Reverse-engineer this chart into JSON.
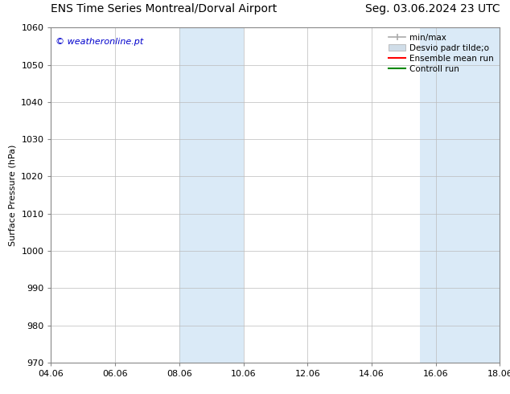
{
  "title_left": "ENS Time Series Montreal/Dorval Airport",
  "title_right": "Seg. 03.06.2024 23 UTC",
  "ylabel": "Surface Pressure (hPa)",
  "xlabel": "",
  "ylim": [
    970,
    1060
  ],
  "yticks": [
    970,
    980,
    990,
    1000,
    1010,
    1020,
    1030,
    1040,
    1050,
    1060
  ],
  "xlim_min": 4.06,
  "xlim_max": 18.06,
  "xtick_labels": [
    "04.06",
    "06.06",
    "08.06",
    "10.06",
    "12.06",
    "14.06",
    "16.06",
    "18.06"
  ],
  "xtick_values": [
    4.06,
    6.06,
    8.06,
    10.06,
    12.06,
    14.06,
    16.06,
    18.06
  ],
  "shaded_regions": [
    {
      "xmin": 8.06,
      "xmax": 10.06
    },
    {
      "xmin": 15.56,
      "xmax": 18.06
    }
  ],
  "shade_color": "#daeaf7",
  "watermark_text": "© weatheronline.pt",
  "watermark_color": "#0000cc",
  "bg_color": "#ffffff",
  "grid_color": "#bbbbbb",
  "title_fontsize": 10,
  "axis_fontsize": 8,
  "tick_fontsize": 8,
  "legend_label_minmax": "min/max",
  "legend_label_desvio": "Desvio padr tilde;o",
  "legend_label_ensemble": "Ensemble mean run",
  "legend_label_control": "Controll run",
  "legend_color_minmax": "#aaaaaa",
  "legend_color_desvio": "#ccddee",
  "legend_color_ensemble": "#ff0000",
  "legend_color_control": "#008800"
}
